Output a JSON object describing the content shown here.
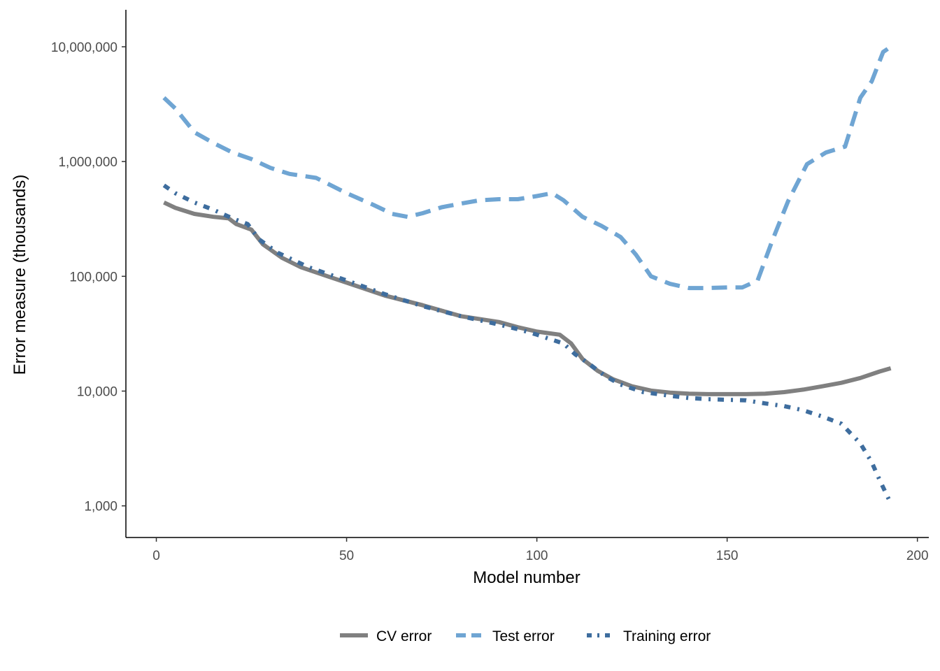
{
  "chart_data": {
    "type": "line",
    "title": "",
    "xlabel": "Model number",
    "ylabel": "Error measure (thousands)",
    "xlim": [
      -8,
      203
    ],
    "ylim": [
      530,
      21000000
    ],
    "y_scale": "log",
    "x_ticks": [
      0,
      50,
      100,
      150,
      200
    ],
    "x_tick_labels": [
      "0",
      "50",
      "100",
      "150",
      "200"
    ],
    "y_ticks": [
      1000,
      10000,
      100000,
      1000000,
      10000000
    ],
    "y_tick_labels": [
      "1,000",
      "10,000",
      "100,000",
      "1,000,000",
      "10,000,000"
    ],
    "grid": false,
    "legend_position": "bottom",
    "series": [
      {
        "name": "CV error",
        "color": "#808080",
        "dash": "solid",
        "x": [
          2,
          5,
          10,
          15,
          19,
          21,
          25,
          28,
          33,
          38,
          45,
          50,
          60,
          70,
          80,
          90,
          95,
          100,
          103,
          106,
          109,
          112,
          116,
          120,
          125,
          130,
          135,
          140,
          145,
          150,
          155,
          160,
          165,
          170,
          175,
          180,
          185,
          190,
          193
        ],
        "y": [
          440000,
          395000,
          350000,
          330000,
          320000,
          285000,
          255000,
          190000,
          145000,
          120000,
          100000,
          88000,
          68000,
          56000,
          45000,
          40000,
          36000,
          33000,
          32000,
          31000,
          26000,
          19000,
          15000,
          12700,
          11000,
          10100,
          9700,
          9500,
          9400,
          9400,
          9400,
          9500,
          9800,
          10300,
          11000,
          11800,
          13000,
          14800,
          15800
        ]
      },
      {
        "name": "Test error",
        "color": "#6fa5d3",
        "dash": "dashed",
        "x": [
          2,
          5,
          10,
          15,
          20,
          25,
          30,
          35,
          42,
          50,
          57,
          62,
          66,
          70,
          75,
          80,
          85,
          90,
          95,
          100,
          104,
          107,
          112,
          117,
          122,
          126,
          130,
          135,
          140,
          145,
          150,
          154,
          158,
          162,
          166,
          171,
          176,
          181,
          185,
          188,
          191,
          193
        ],
        "y": [
          3600000,
          2900000,
          1800000,
          1450000,
          1200000,
          1050000,
          880000,
          780000,
          720000,
          530000,
          420000,
          350000,
          330000,
          355000,
          400000,
          430000,
          460000,
          470000,
          470000,
          500000,
          530000,
          460000,
          330000,
          275000,
          220000,
          155000,
          100000,
          86000,
          79000,
          79000,
          80000,
          80000,
          92000,
          210000,
          450000,
          950000,
          1200000,
          1350000,
          3600000,
          5000000,
          9000000,
          10000000
        ]
      },
      {
        "name": "Training error",
        "color": "#3e6d9e",
        "dash": "dashdot",
        "x": [
          2,
          5,
          10,
          15,
          20,
          24,
          27,
          32,
          40,
          50,
          60,
          70,
          80,
          90,
          96,
          100,
          104,
          107,
          110,
          114,
          118,
          122,
          128,
          135,
          140,
          145,
          150,
          155,
          160,
          165,
          170,
          175,
          180,
          185,
          188,
          190,
          193
        ],
        "y": [
          620000,
          530000,
          440000,
          380000,
          320000,
          285000,
          210000,
          160000,
          120000,
          92000,
          70000,
          55000,
          45000,
          38000,
          34000,
          31000,
          28000,
          26000,
          21000,
          17000,
          13500,
          11400,
          9800,
          9100,
          8700,
          8500,
          8400,
          8300,
          7800,
          7400,
          6800,
          6000,
          5200,
          3500,
          2400,
          1700,
          1050
        ]
      }
    ]
  }
}
